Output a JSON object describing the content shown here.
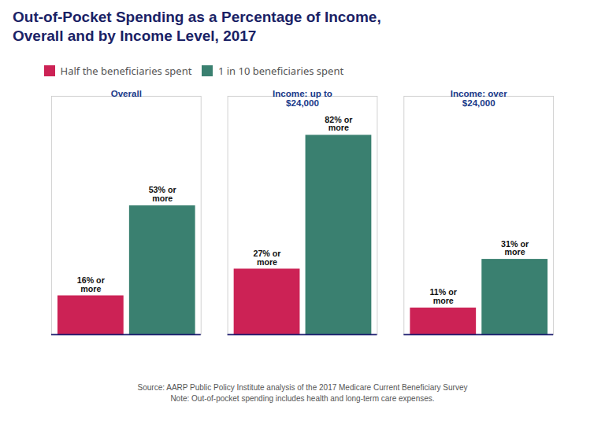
{
  "chart_data": {
    "type": "bar",
    "title": "Out-of-Pocket Spending as a Percentage of Income,\nOverall and by Income Level, 2017",
    "caption": "Source: AARP Public Policy Institute analysis of the 2017 Medicare Current Beneficiary Survey\nNote: Out-of-pocket spending includes health and long-term care expenses.",
    "categories": [
      "Overall",
      "Income: up to\n$24,000",
      "Income: over\n$24,000"
    ],
    "series": [
      {
        "name": "Half the beneficiaries spent",
        "color": "#cc2255",
        "values": [
          16,
          27,
          11
        ],
        "value_labels": [
          "16% or\nmore",
          "27% or\nmore",
          "11% or\nmore"
        ]
      },
      {
        "name": "1 in 10 beneficiaries spent",
        "color": "#3a8070",
        "values": [
          53,
          82,
          31
        ],
        "value_labels": [
          "53% or\nmore",
          "82% or\nmore",
          "31% or\nmore"
        ]
      }
    ],
    "ylim": [
      0,
      98
    ],
    "grid": false,
    "legend": "upper left",
    "data_labels": true,
    "tick_labels": "x"
  }
}
